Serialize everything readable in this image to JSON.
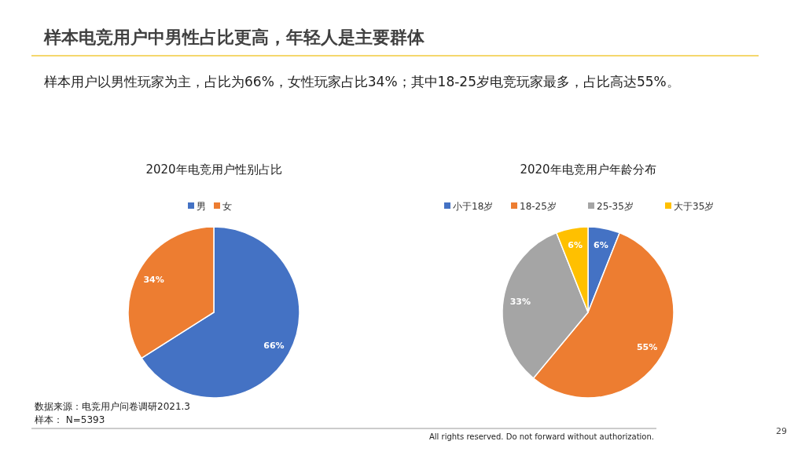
{
  "chart_data": [
    {
      "type": "other",
      "title": "样本电竞用户中男性占比更高，年轻人是主要群体",
      "subtitle": "样本用户以男性玩家为主，占比为66%，女性玩家占比34%；其中18-25岁电竞玩家最多，占比高达55%。",
      "annotations": [
        "数据来源：电竞用户问卷调研2021.3",
        "样本：  N=5393",
        "All rights reserved. Do not forward without authorization.",
        "29"
      ]
    },
    {
      "type": "pie",
      "title": "2020年电竞用户性别占比",
      "categories": [
        "男",
        "女"
      ],
      "values": [
        66,
        34
      ],
      "colors": [
        "#4472c4",
        "#ed7d31"
      ],
      "value_labels": [
        "66%",
        "34%"
      ],
      "legend": "top"
    },
    {
      "type": "pie",
      "title": "2020年电竞用户年龄分布",
      "categories": [
        "小于18岁",
        "18-25岁",
        "25-35岁",
        "大于35岁"
      ],
      "values": [
        6,
        55,
        33,
        6
      ],
      "colors": [
        "#4472c4",
        "#ed7d31",
        "#a5a5a5",
        "#ffc000"
      ],
      "value_labels": [
        "6%",
        "55%",
        "33%",
        "6%"
      ],
      "legend": "top"
    }
  ]
}
